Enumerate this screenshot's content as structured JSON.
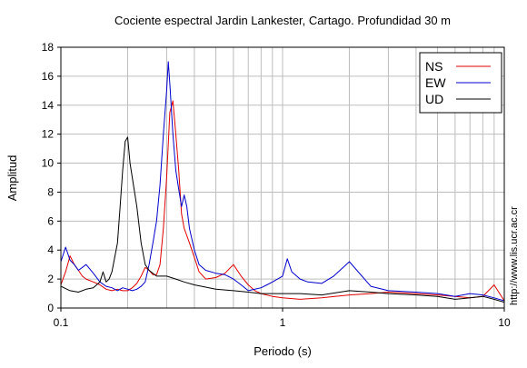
{
  "chart_data": {
    "type": "line",
    "title": "Cociente espectral Jardin Lankester, Cartago. Profundidad 30 m",
    "xlabel": "Periodo (s)",
    "ylabel": "Amplitud",
    "xscale": "log",
    "xlim": [
      0.1,
      10
    ],
    "ylim": [
      0,
      18
    ],
    "xticks": [
      0.1,
      1,
      10
    ],
    "xtick_labels": [
      "0.1",
      "1",
      "10"
    ],
    "yticks": [
      0,
      2,
      4,
      6,
      8,
      10,
      12,
      14,
      16,
      18
    ],
    "ytick_labels": [
      "0",
      "2",
      "4",
      "6",
      "8",
      "10",
      "12",
      "14",
      "16",
      "18"
    ],
    "grid": true,
    "legend_position": "top-right",
    "watermark": "http://www.lis.ucr.ac.cr",
    "series": [
      {
        "name": "NS",
        "color": "#e00000",
        "x": [
          0.1,
          0.105,
          0.11,
          0.115,
          0.12,
          0.125,
          0.13,
          0.14,
          0.15,
          0.16,
          0.17,
          0.18,
          0.19,
          0.2,
          0.21,
          0.22,
          0.23,
          0.24,
          0.25,
          0.26,
          0.27,
          0.28,
          0.29,
          0.3,
          0.31,
          0.32,
          0.33,
          0.34,
          0.35,
          0.36,
          0.38,
          0.4,
          0.42,
          0.45,
          0.5,
          0.55,
          0.6,
          0.65,
          0.7,
          0.75,
          0.8,
          0.9,
          1.0,
          1.2,
          1.5,
          2.0,
          2.5,
          3.0,
          4.0,
          5.0,
          6.0,
          7.0,
          8.0,
          9.0,
          10.0
        ],
        "y": [
          1.6,
          2.5,
          3.6,
          3.0,
          2.6,
          2.2,
          2.0,
          1.8,
          1.6,
          1.3,
          1.2,
          1.3,
          1.2,
          1.2,
          1.4,
          1.7,
          2.2,
          2.8,
          2.6,
          2.3,
          2.3,
          3.0,
          5.5,
          9.0,
          13.5,
          14.3,
          12.0,
          9.5,
          6.5,
          5.5,
          4.5,
          3.5,
          2.5,
          2.0,
          2.1,
          2.4,
          3.0,
          2.2,
          1.6,
          1.2,
          1.0,
          0.8,
          0.7,
          0.6,
          0.7,
          0.9,
          1.0,
          1.1,
          1.0,
          0.9,
          0.8,
          0.7,
          0.8,
          1.6,
          0.5
        ]
      },
      {
        "name": "EW",
        "color": "#0000cc",
        "x": [
          0.1,
          0.105,
          0.11,
          0.115,
          0.12,
          0.13,
          0.14,
          0.15,
          0.16,
          0.17,
          0.18,
          0.19,
          0.2,
          0.21,
          0.22,
          0.23,
          0.24,
          0.25,
          0.26,
          0.27,
          0.28,
          0.29,
          0.3,
          0.305,
          0.31,
          0.32,
          0.33,
          0.34,
          0.35,
          0.36,
          0.37,
          0.38,
          0.4,
          0.42,
          0.45,
          0.5,
          0.55,
          0.6,
          0.65,
          0.7,
          0.75,
          0.8,
          0.85,
          0.9,
          1.0,
          1.05,
          1.1,
          1.2,
          1.3,
          1.5,
          1.7,
          2.0,
          2.5,
          3.0,
          4.0,
          5.0,
          6.0,
          7.0,
          8.0,
          9.0,
          10.0
        ],
        "y": [
          3.2,
          4.2,
          3.3,
          3.0,
          2.6,
          3.0,
          2.4,
          1.8,
          1.5,
          1.4,
          1.2,
          1.4,
          1.3,
          1.2,
          1.3,
          1.5,
          1.8,
          3.0,
          4.5,
          6.0,
          8.5,
          12.0,
          15.0,
          17.0,
          15.5,
          12.0,
          9.5,
          8.2,
          7.0,
          7.8,
          7.0,
          5.5,
          4.0,
          3.0,
          2.6,
          2.4,
          2.3,
          2.0,
          1.6,
          1.2,
          1.3,
          1.4,
          1.6,
          1.8,
          2.2,
          3.4,
          2.5,
          2.0,
          1.8,
          1.7,
          2.2,
          3.2,
          1.5,
          1.2,
          1.1,
          1.0,
          0.8,
          1.0,
          0.9,
          0.7,
          0.5
        ]
      },
      {
        "name": "UD",
        "color": "#000000",
        "x": [
          0.1,
          0.11,
          0.12,
          0.13,
          0.14,
          0.15,
          0.155,
          0.16,
          0.165,
          0.17,
          0.18,
          0.185,
          0.19,
          0.195,
          0.2,
          0.205,
          0.21,
          0.22,
          0.23,
          0.24,
          0.25,
          0.27,
          0.3,
          0.33,
          0.36,
          0.4,
          0.5,
          0.6,
          0.7,
          0.8,
          0.9,
          1.0,
          1.2,
          1.5,
          2.0,
          2.5,
          3.0,
          4.0,
          5.0,
          6.0,
          7.0,
          8.0,
          9.0,
          10.0
        ],
        "y": [
          1.5,
          1.2,
          1.1,
          1.3,
          1.4,
          1.8,
          2.5,
          1.8,
          2.0,
          2.5,
          4.5,
          7.0,
          9.5,
          11.5,
          11.8,
          10.0,
          9.0,
          7.0,
          4.5,
          3.0,
          2.6,
          2.2,
          2.2,
          2.0,
          1.8,
          1.6,
          1.3,
          1.2,
          1.1,
          1.0,
          1.0,
          1.0,
          1.0,
          0.9,
          1.2,
          1.1,
          1.0,
          0.9,
          0.8,
          0.6,
          0.7,
          0.8,
          0.6,
          0.4
        ]
      }
    ]
  }
}
